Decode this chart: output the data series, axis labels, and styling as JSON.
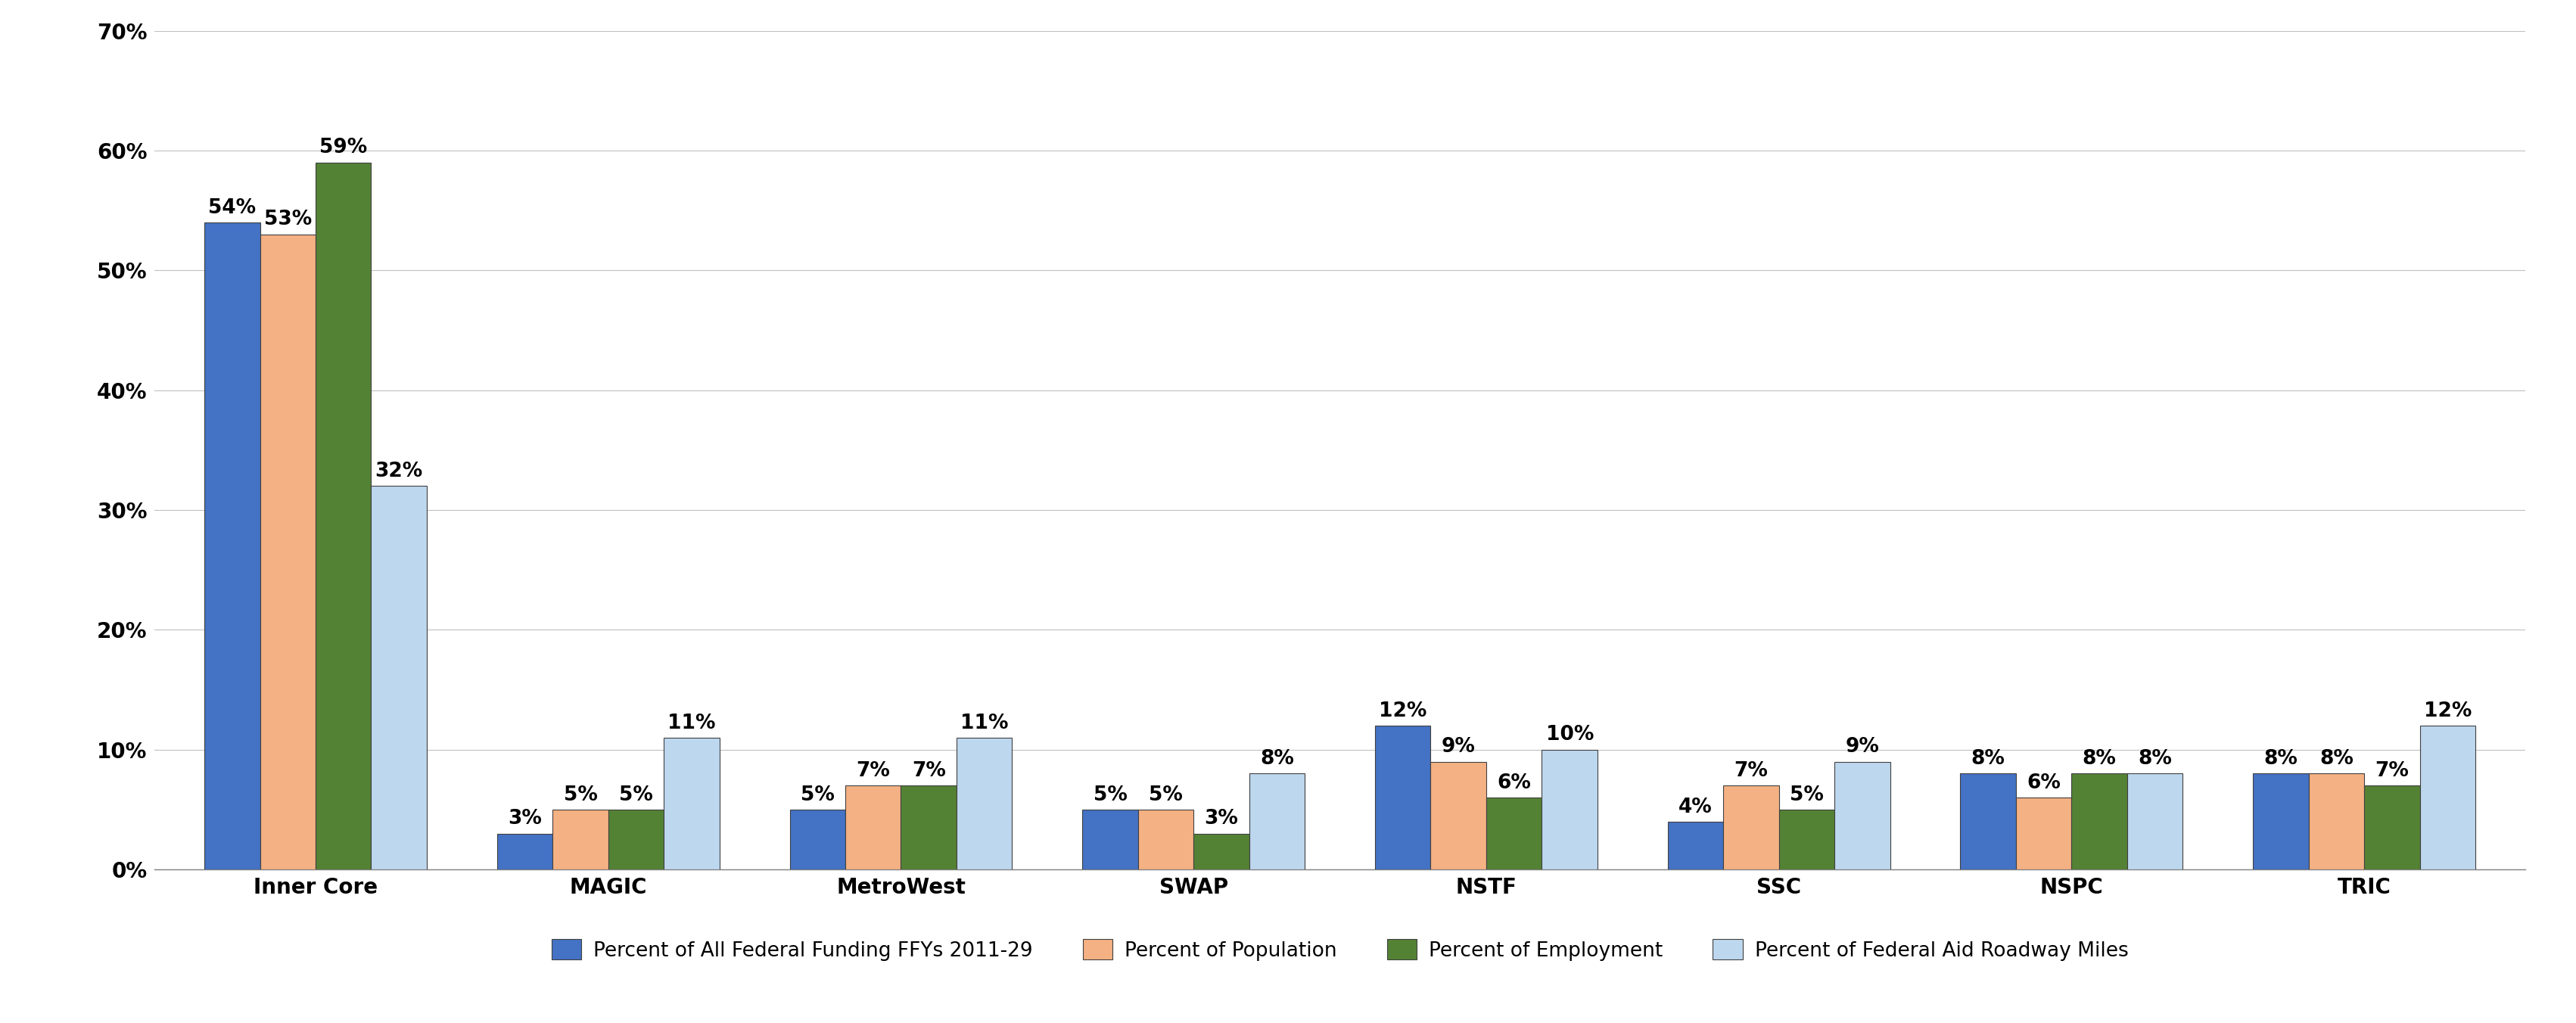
{
  "categories": [
    "Inner Core",
    "MAGIC",
    "MetroWest",
    "SWAP",
    "NSTF",
    "SSC",
    "NSPC",
    "TRIC"
  ],
  "series": {
    "funding": [
      54,
      3,
      5,
      5,
      12,
      4,
      8,
      8
    ],
    "population": [
      53,
      5,
      7,
      5,
      9,
      7,
      6,
      8
    ],
    "employment": [
      59,
      5,
      7,
      3,
      6,
      5,
      8,
      7
    ],
    "roadway": [
      32,
      11,
      11,
      8,
      10,
      9,
      8,
      12
    ]
  },
  "labels": {
    "funding": [
      "54%",
      "3%",
      "5%",
      "5%",
      "12%",
      "4%",
      "8%",
      "8%"
    ],
    "population": [
      "53%",
      "5%",
      "7%",
      "5%",
      "9%",
      "7%",
      "6%",
      "8%"
    ],
    "employment": [
      "59%",
      "5%",
      "7%",
      "3%",
      "6%",
      "5%",
      "8%",
      "7%"
    ],
    "roadway": [
      "32%",
      "11%",
      "11%",
      "8%",
      "10%",
      "9%",
      "8%",
      "12%"
    ]
  },
  "colors": {
    "funding": "#4472C4",
    "population": "#F4B183",
    "employment": "#548235",
    "roadway": "#BDD7EE"
  },
  "legend_labels": [
    "Percent of All Federal Funding FFYs 2011-29",
    "Percent of Population",
    "Percent of Employment",
    "Percent of Federal Aid Roadway Miles"
  ],
  "ylim": [
    0,
    70
  ],
  "yticks": [
    0,
    10,
    20,
    30,
    40,
    50,
    60,
    70
  ],
  "ytick_labels": [
    "0%",
    "10%",
    "20%",
    "30%",
    "40%",
    "50%",
    "60%",
    "70%"
  ],
  "background_color": "#FFFFFF",
  "grid_color": "#C0C0C0",
  "bar_width": 0.19,
  "label_fontsize": 19,
  "axis_fontsize": 20,
  "legend_fontsize": 19,
  "tick_fontsize": 20,
  "bar_edgecolor": "#404040",
  "bar_edgewidth": 0.8
}
